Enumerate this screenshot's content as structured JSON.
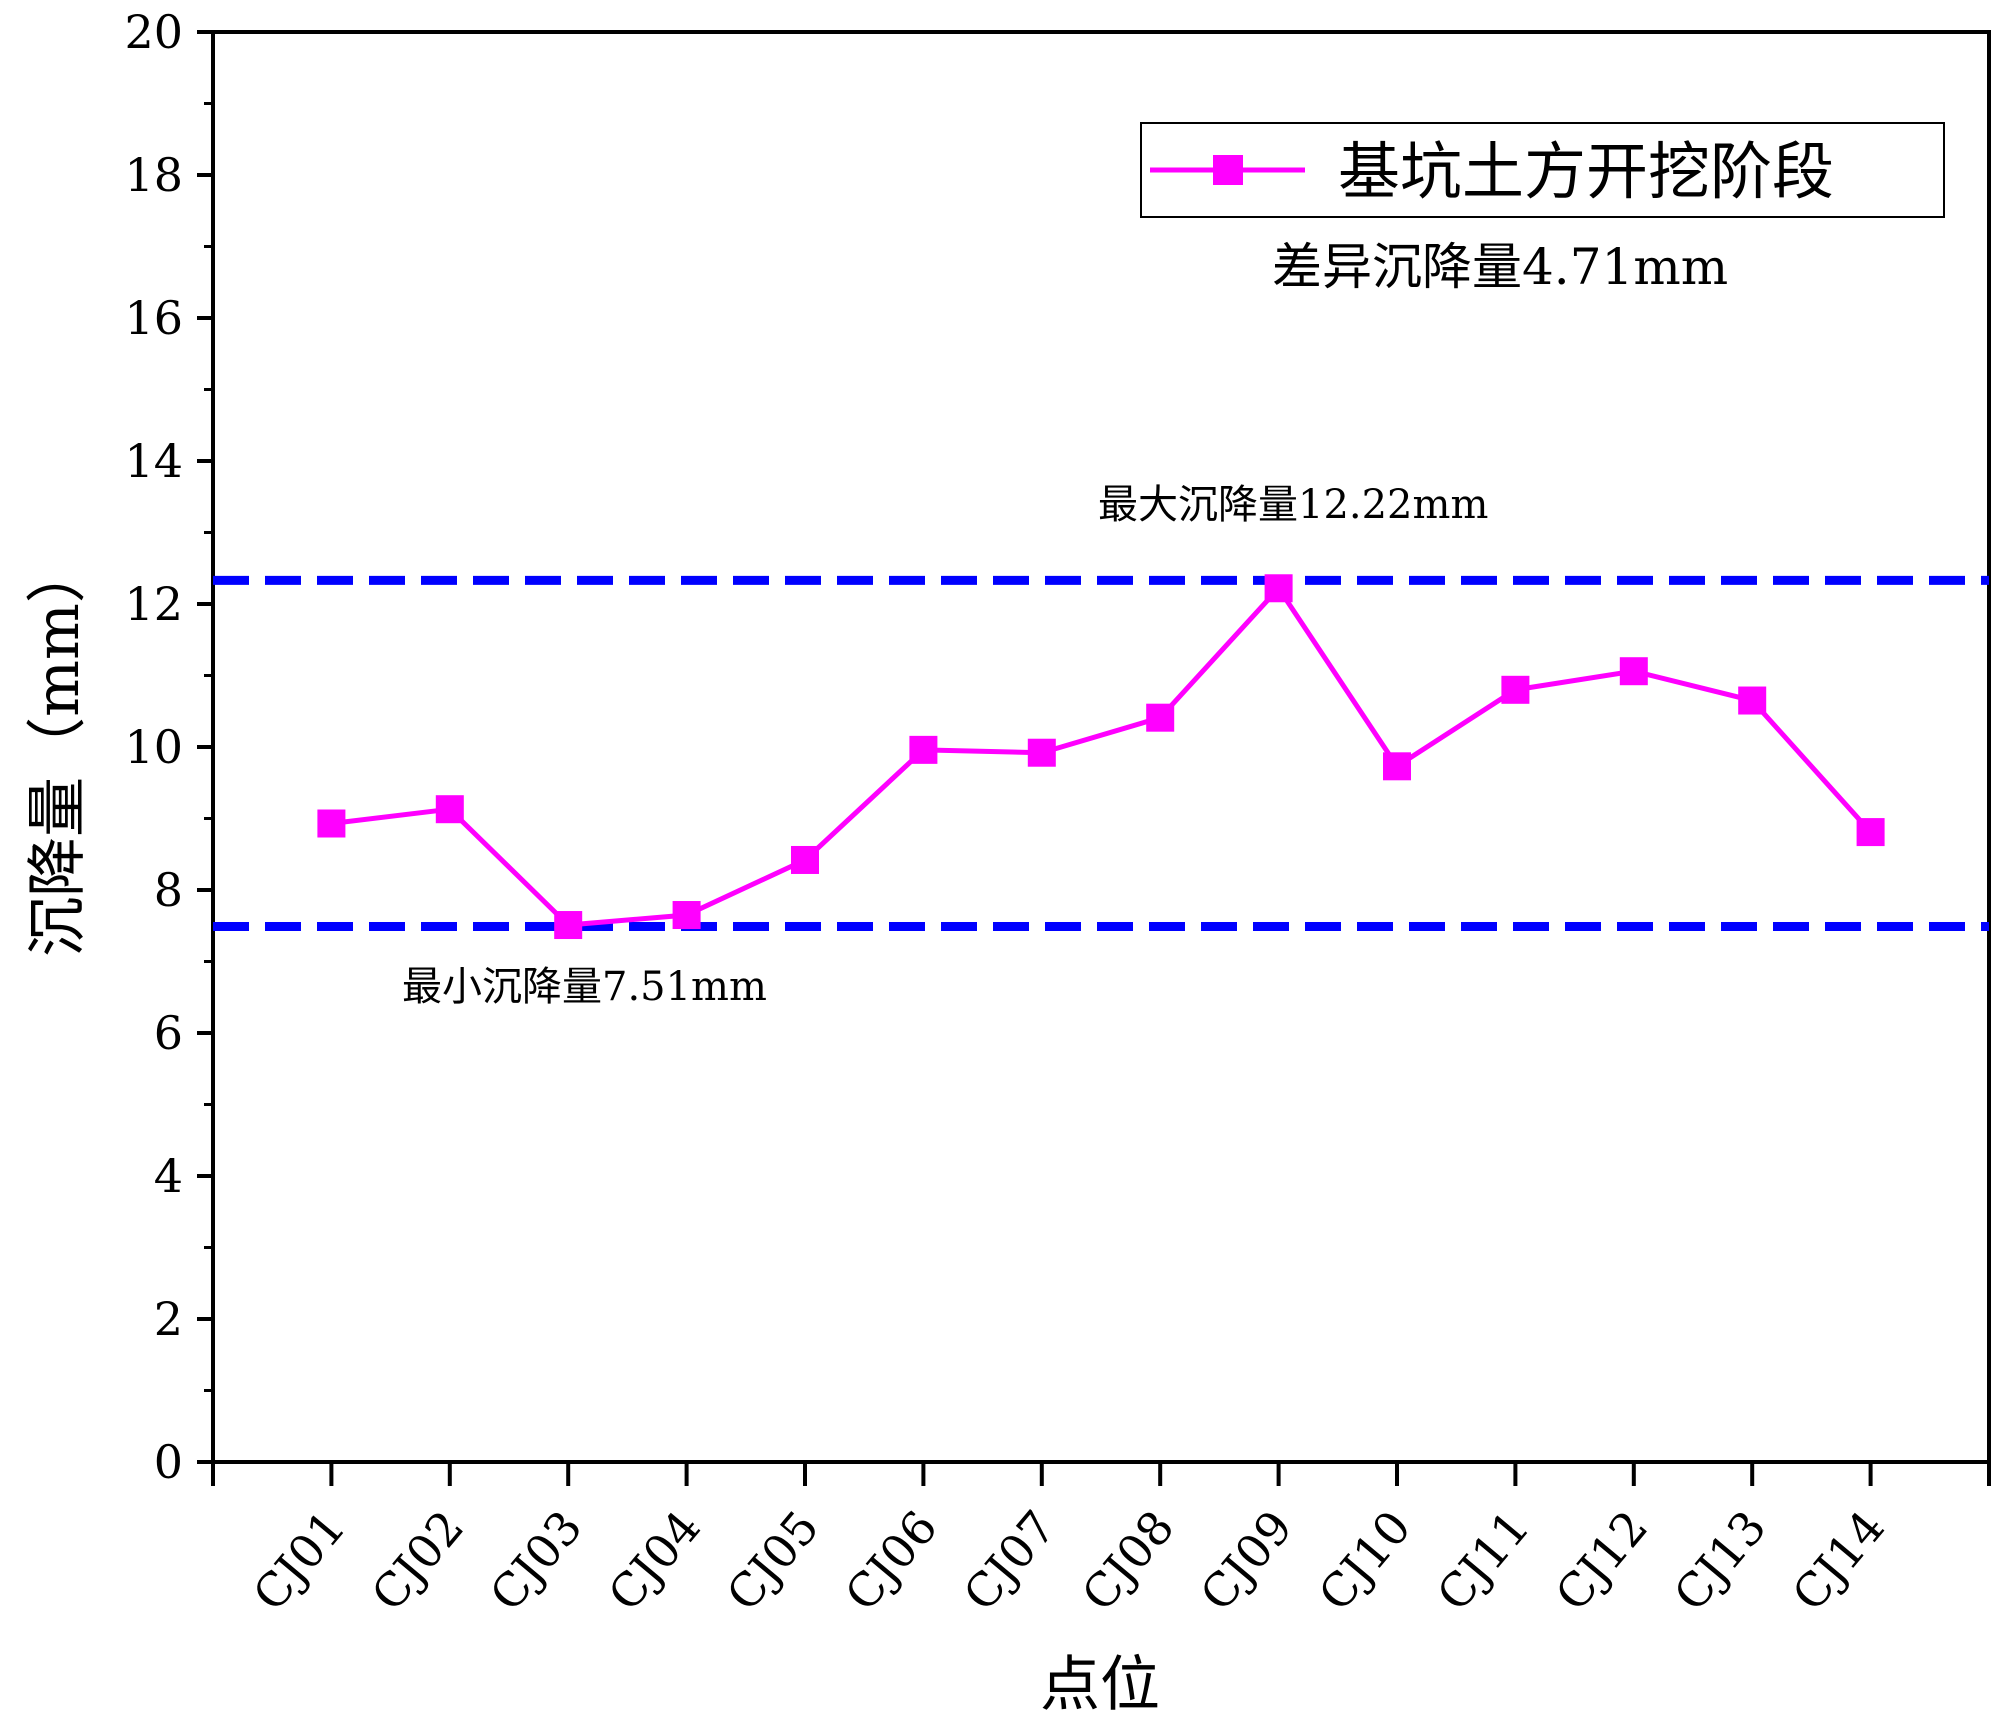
{
  "chart_data": {
    "type": "line",
    "xlabel": "点位",
    "ylabel": "沉降量（mm）",
    "ylim": [
      0,
      20
    ],
    "yticks": [
      0,
      2,
      4,
      6,
      8,
      10,
      12,
      14,
      16,
      18,
      20
    ],
    "categories": [
      "CJ01",
      "CJ02",
      "CJ03",
      "CJ04",
      "CJ05",
      "CJ06",
      "CJ07",
      "CJ08",
      "CJ09",
      "CJ10",
      "CJ11",
      "CJ12",
      "CJ13",
      "CJ14"
    ],
    "series": [
      {
        "name": "基坑土方开挖阶段",
        "color": "#ff00ff",
        "marker": "square",
        "values": [
          8.93,
          9.13,
          7.51,
          7.65,
          8.42,
          9.96,
          9.92,
          10.41,
          12.22,
          9.73,
          10.8,
          11.06,
          10.65,
          8.81
        ]
      }
    ],
    "reference_lines": [
      {
        "value": 12.33,
        "color": "#0000ff",
        "style": "dashed"
      },
      {
        "value": 7.49,
        "color": "#0000ff",
        "style": "dashed"
      }
    ],
    "annotations": {
      "max": "最大沉降量12.22mm",
      "min": "最小沉降量7.51mm",
      "diff": "差异沉降量4.71mm"
    },
    "legend": {
      "position": "top-right"
    },
    "grid": false
  }
}
